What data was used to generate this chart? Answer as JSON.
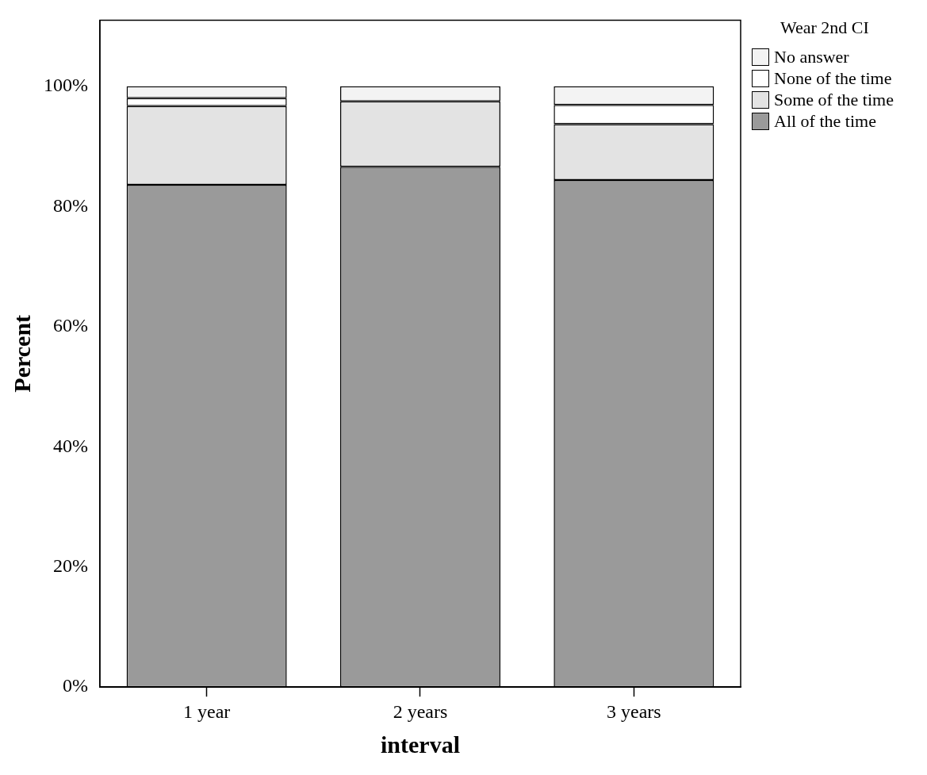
{
  "chart_data": {
    "type": "bar",
    "stacked": true,
    "xlabel": "interval",
    "ylabel": "Percent",
    "legend_title": "Wear 2nd CI",
    "legend": "top right",
    "categories": [
      "1 year",
      "2 years",
      "3 years"
    ],
    "series": [
      {
        "name": "All of the time",
        "color": "#9a9a9a",
        "values": [
          83.6,
          86.6,
          84.4
        ]
      },
      {
        "name": "Some of the time",
        "color": "#e3e3e3",
        "values": [
          13.1,
          10.9,
          9.3
        ]
      },
      {
        "name": "None of the time",
        "color": "#ffffff",
        "values": [
          1.3,
          0,
          3.2
        ]
      },
      {
        "name": "No answer",
        "color": "#f3f3f3",
        "values": [
          2.0,
          2.5,
          3.1
        ]
      }
    ],
    "ylim": [
      0,
      111
    ],
    "yticks": [
      {
        "value": 0,
        "label": "0%"
      },
      {
        "value": 20,
        "label": "20%"
      },
      {
        "value": 40,
        "label": "40%"
      },
      {
        "value": 60,
        "label": "60%"
      },
      {
        "value": 80,
        "label": "80%"
      },
      {
        "value": 100,
        "label": "100%"
      }
    ],
    "grid": false
  }
}
